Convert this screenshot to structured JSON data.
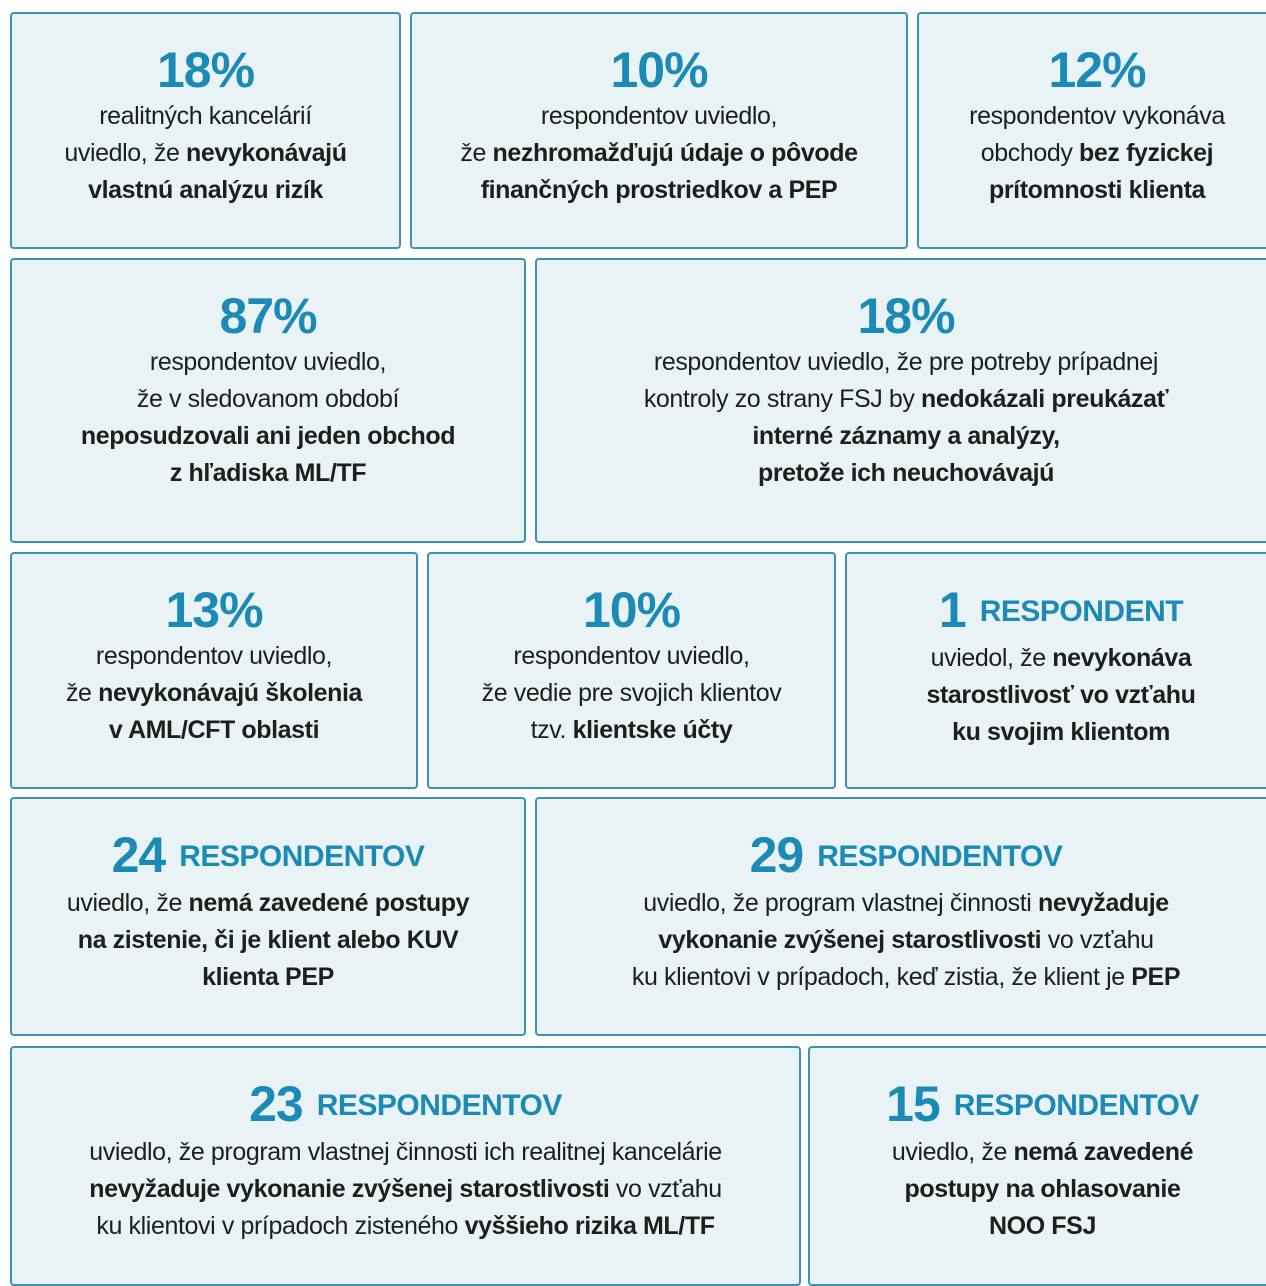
{
  "cards": [
    {
      "figure": "18%",
      "lines": [
        [
          {
            "t": "realitných kancelárií",
            "b": false
          }
        ],
        [
          {
            "t": "uviedlo, že ",
            "b": false
          },
          {
            "t": "nevykonávajú",
            "b": true
          }
        ],
        [
          {
            "t": "vlastnú analýzu rizík",
            "b": true
          }
        ]
      ]
    },
    {
      "figure": "10%",
      "lines": [
        [
          {
            "t": "respondentov uviedlo,",
            "b": false
          }
        ],
        [
          {
            "t": "že ",
            "b": false
          },
          {
            "t": "nezhromažďujú údaje o pôvode",
            "b": true
          }
        ],
        [
          {
            "t": "finančných prostriedkov a PEP",
            "b": true
          }
        ]
      ]
    },
    {
      "figure": "12%",
      "lines": [
        [
          {
            "t": "respondentov vykonáva",
            "b": false
          }
        ],
        [
          {
            "t": "obchody ",
            "b": false
          },
          {
            "t": "bez fyzickej",
            "b": true
          }
        ],
        [
          {
            "t": "prítomnosti klienta",
            "b": true
          }
        ]
      ]
    },
    {
      "figure": "87%",
      "lines": [
        [
          {
            "t": "respondentov uviedlo,",
            "b": false
          }
        ],
        [
          {
            "t": "že v sledovanom období",
            "b": false
          }
        ],
        [
          {
            "t": "neposudzovali ani jeden obchod",
            "b": true
          }
        ],
        [
          {
            "t": "z hľadiska ML/TF",
            "b": true
          }
        ]
      ]
    },
    {
      "figure": "18%",
      "lines": [
        [
          {
            "t": "respondentov uviedlo, že pre potreby prípadnej",
            "b": false
          }
        ],
        [
          {
            "t": "kontroly zo strany FSJ by ",
            "b": false
          },
          {
            "t": "nedokázali preukázať",
            "b": true
          }
        ],
        [
          {
            "t": "interné záznamy a analýzy,",
            "b": true
          }
        ],
        [
          {
            "t": "pretože ich neuchovávajú",
            "b": true
          }
        ]
      ]
    },
    {
      "figure": "13%",
      "lines": [
        [
          {
            "t": "respondentov uviedlo,",
            "b": false
          }
        ],
        [
          {
            "t": "že ",
            "b": false
          },
          {
            "t": "nevykonávajú školenia",
            "b": true
          }
        ],
        [
          {
            "t": "v AML/CFT oblasti",
            "b": true
          }
        ]
      ]
    },
    {
      "figure": "10%",
      "lines": [
        [
          {
            "t": "respondentov uviedlo,",
            "b": false
          }
        ],
        [
          {
            "t": "že vedie pre svojich klientov",
            "b": false
          }
        ],
        [
          {
            "t": "tzv. ",
            "b": false
          },
          {
            "t": "klientske účty",
            "b": true
          }
        ]
      ]
    },
    {
      "figure": "1",
      "unit": "RESPONDENT",
      "lines": [
        [
          {
            "t": "uviedol, že ",
            "b": false
          },
          {
            "t": "nevykonáva",
            "b": true
          }
        ],
        [
          {
            "t": "starostlivosť vo vzťahu",
            "b": true
          }
        ],
        [
          {
            "t": "ku svojim klientom",
            "b": true
          }
        ]
      ]
    },
    {
      "figure": "24",
      "unit": "RESPONDENTOV",
      "lines": [
        [
          {
            "t": "uviedlo, že ",
            "b": false
          },
          {
            "t": "nemá zavedené postupy",
            "b": true
          }
        ],
        [
          {
            "t": "na zistenie, či je klient alebo KUV",
            "b": true
          }
        ],
        [
          {
            "t": "klienta PEP",
            "b": true
          }
        ]
      ]
    },
    {
      "figure": "29",
      "unit": "RESPONDENTOV",
      "lines": [
        [
          {
            "t": "uviedlo, že program vlastnej činnosti ",
            "b": false
          },
          {
            "t": "nevyžaduje",
            "b": true
          }
        ],
        [
          {
            "t": "vykonanie zvýšenej starostlivosti",
            "b": true
          },
          {
            "t": " vo vzťahu",
            "b": false
          }
        ],
        [
          {
            "t": "ku klientovi v prípadoch, keď zistia, že klient je ",
            "b": false
          },
          {
            "t": "PEP",
            "b": true
          }
        ]
      ]
    },
    {
      "figure": "23",
      "unit": "RESPONDENTOV",
      "lines": [
        [
          {
            "t": "uviedlo, že program vlastnej činnosti ich realitnej kancelárie",
            "b": false
          }
        ],
        [
          {
            "t": "nevyžaduje vykonanie zvýšenej starostlivosti",
            "b": true
          },
          {
            "t": " vo vzťahu",
            "b": false
          }
        ],
        [
          {
            "t": "ku klientovi v prípadoch zisteného ",
            "b": false
          },
          {
            "t": "vyššieho rizika ML/TF",
            "b": true
          }
        ]
      ]
    },
    {
      "figure": "15",
      "unit": "RESPONDENTOV",
      "lines": [
        [
          {
            "t": "uviedlo, že ",
            "b": false
          },
          {
            "t": "nemá zavedené",
            "b": true
          }
        ],
        [
          {
            "t": "postupy na ohlasovanie",
            "b": true
          }
        ],
        [
          {
            "t": "NOO FSJ",
            "b": true
          }
        ]
      ]
    }
  ]
}
